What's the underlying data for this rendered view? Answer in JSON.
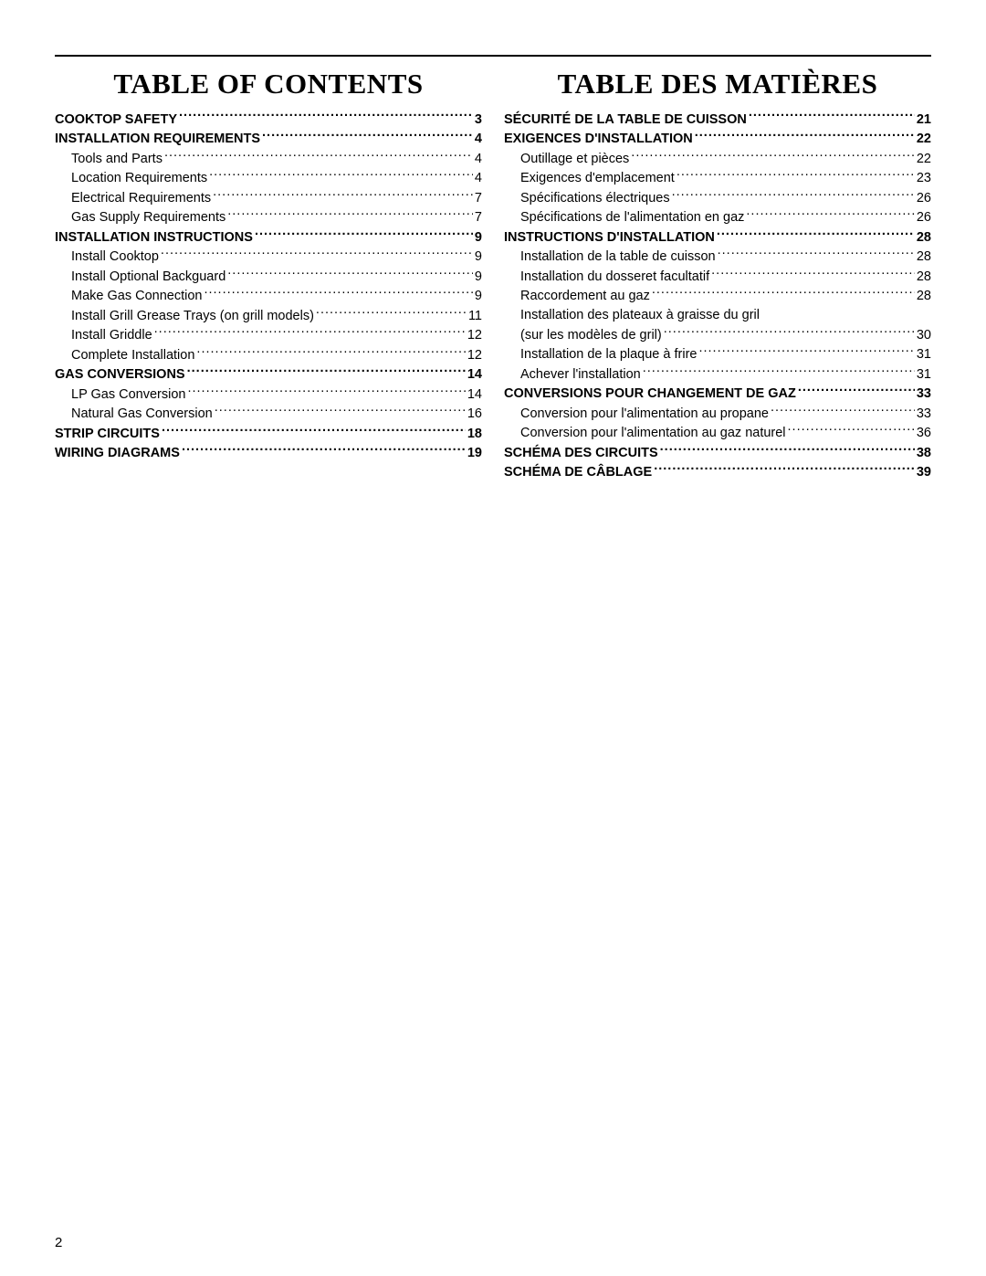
{
  "page_number": "2",
  "left_column": {
    "title": "TABLE OF CONTENTS",
    "entries": [
      {
        "label": "COOKTOP SAFETY",
        "page": "3",
        "bold": true,
        "sub": false
      },
      {
        "label": "INSTALLATION REQUIREMENTS",
        "page": "4",
        "bold": true,
        "sub": false
      },
      {
        "label": "Tools and Parts",
        "page": "4",
        "bold": false,
        "sub": true
      },
      {
        "label": "Location Requirements",
        "page": "4",
        "bold": false,
        "sub": true
      },
      {
        "label": "Electrical Requirements",
        "page": "7",
        "bold": false,
        "sub": true
      },
      {
        "label": "Gas Supply Requirements",
        "page": "7",
        "bold": false,
        "sub": true
      },
      {
        "label": "INSTALLATION INSTRUCTIONS",
        "page": "9",
        "bold": true,
        "sub": false
      },
      {
        "label": "Install Cooktop",
        "page": "9",
        "bold": false,
        "sub": true
      },
      {
        "label": "Install Optional Backguard",
        "page": "9",
        "bold": false,
        "sub": true
      },
      {
        "label": "Make Gas Connection",
        "page": "9",
        "bold": false,
        "sub": true
      },
      {
        "label": "Install Grill Grease Trays (on grill models)",
        "page": "11",
        "bold": false,
        "sub": true
      },
      {
        "label": "Install Griddle",
        "page": "12",
        "bold": false,
        "sub": true
      },
      {
        "label": "Complete Installation",
        "page": "12",
        "bold": false,
        "sub": true
      },
      {
        "label": "GAS CONVERSIONS",
        "page": "14",
        "bold": true,
        "sub": false
      },
      {
        "label": "LP Gas Conversion",
        "page": "14",
        "bold": false,
        "sub": true
      },
      {
        "label": "Natural Gas Conversion",
        "page": "16",
        "bold": false,
        "sub": true
      },
      {
        "label": "STRIP CIRCUITS",
        "page": "18",
        "bold": true,
        "sub": false
      },
      {
        "label": "WIRING DIAGRAMS",
        "page": "19",
        "bold": true,
        "sub": false
      }
    ]
  },
  "right_column": {
    "title": "TABLE DES MATIÈRES",
    "entries": [
      {
        "label": "SÉCURITÉ DE LA TABLE DE CUISSON",
        "page": "21",
        "bold": true,
        "sub": false,
        "sp": true
      },
      {
        "label": "EXIGENCES D'INSTALLATION",
        "page": "22",
        "bold": true,
        "sub": false
      },
      {
        "label": "Outillage et pièces",
        "page": "22",
        "bold": false,
        "sub": true
      },
      {
        "label": "Exigences d'emplacement",
        "page": "23",
        "bold": false,
        "sub": true
      },
      {
        "label": "Spécifications électriques",
        "page": "26",
        "bold": false,
        "sub": true
      },
      {
        "label": "Spécifications de l'alimentation en gaz",
        "page": "26",
        "bold": false,
        "sub": true
      },
      {
        "label": "INSTRUCTIONS D'INSTALLATION",
        "page": "28",
        "bold": true,
        "sub": false
      },
      {
        "label": "Installation de la table de cuisson",
        "page": "28",
        "bold": false,
        "sub": true
      },
      {
        "label": "Installation du dosseret facultatif",
        "page": "28",
        "bold": false,
        "sub": true
      },
      {
        "label": "Raccordement au gaz",
        "page": "28",
        "bold": false,
        "sub": true
      },
      {
        "label": "Installation des plateaux à graisse du gril",
        "label2": "(sur les modèles de gril)",
        "page": "30",
        "bold": false,
        "sub": true,
        "wrap": true
      },
      {
        "label": "Installation de la plaque à frire",
        "page": "31",
        "bold": false,
        "sub": true
      },
      {
        "label": "Achever l'installation",
        "page": "31",
        "bold": false,
        "sub": true
      },
      {
        "label": "CONVERSIONS POUR CHANGEMENT DE GAZ",
        "page": "33",
        "bold": true,
        "sub": false
      },
      {
        "label": "Conversion pour l'alimentation au propane",
        "page": "33",
        "bold": false,
        "sub": true
      },
      {
        "label": "Conversion pour l'alimentation au gaz naturel",
        "page": "36",
        "bold": false,
        "sub": true
      },
      {
        "label": "SCHÉMA DES CIRCUITS",
        "page": "38",
        "bold": true,
        "sub": false
      },
      {
        "label": "SCHÉMA DE CÂBLAGE",
        "page": "39",
        "bold": true,
        "sub": false
      }
    ]
  }
}
